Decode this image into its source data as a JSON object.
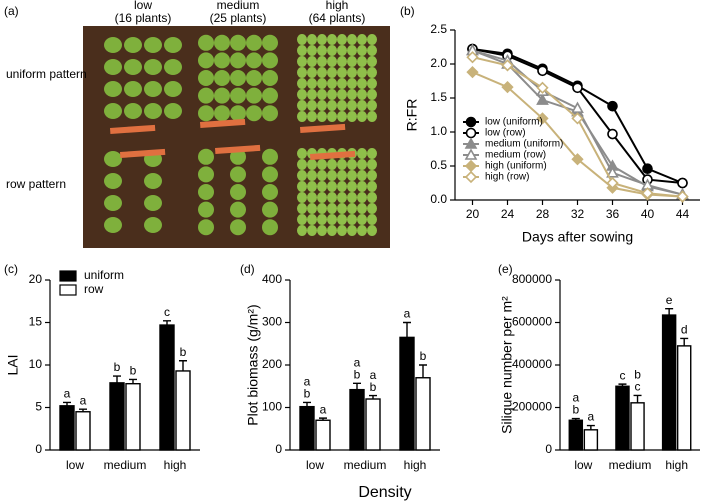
{
  "photo": {
    "panel_label": "(a)",
    "columns": [
      {
        "name": "low",
        "count": "(16 plants)"
      },
      {
        "name": "medium",
        "count": "(25 plants)"
      },
      {
        "name": "high",
        "count": "(64 plants)"
      }
    ],
    "rows": [
      "uniform  pattern",
      "row pattern"
    ]
  },
  "shared_xlabel": "Density",
  "chart_data": [
    {
      "type": "line",
      "panel_label": "(b)",
      "xlabel": "Days after sowing",
      "ylabel": "R:FR",
      "x": [
        20,
        24,
        28,
        32,
        36,
        40,
        44
      ],
      "xlim": [
        18,
        46
      ],
      "xticks": [
        20,
        24,
        28,
        32,
        36,
        40,
        44
      ],
      "ylim": [
        0,
        2.5
      ],
      "yticks": [
        {
          "value": 0,
          "label": "0.0"
        },
        0.5,
        {
          "value": 1,
          "label": "1.0"
        },
        1.5,
        {
          "value": 2,
          "label": "2.0"
        },
        2.5
      ],
      "legend": "lower-left",
      "series": [
        {
          "name": "low (uniform)",
          "color": "#000000",
          "marker": "circle",
          "filled": true,
          "values": [
            2.22,
            2.15,
            1.93,
            1.68,
            1.38,
            0.46,
            0.25
          ]
        },
        {
          "name": "low (row)",
          "color": "#000000",
          "marker": "circle",
          "filled": false,
          "values": [
            2.22,
            2.12,
            1.9,
            1.65,
            0.97,
            0.3,
            0.25
          ]
        },
        {
          "name": "medium (uniform)",
          "color": "#8c8c8c",
          "marker": "triangle",
          "filled": true,
          "values": [
            2.2,
            2.0,
            1.47,
            1.3,
            0.5,
            0.2,
            0.08
          ]
        },
        {
          "name": "medium (row)",
          "color": "#8c8c8c",
          "marker": "triangle",
          "filled": false,
          "values": [
            2.2,
            2.05,
            1.6,
            1.35,
            0.4,
            0.22,
            0.08
          ]
        },
        {
          "name": "high (uniform)",
          "color": "#c8b27a",
          "marker": "diamond",
          "filled": true,
          "values": [
            1.88,
            1.66,
            1.2,
            0.6,
            0.18,
            0.08,
            0.05
          ]
        },
        {
          "name": "high (row)",
          "color": "#c8b27a",
          "marker": "diamond",
          "filled": false,
          "values": [
            2.1,
            1.98,
            1.65,
            1.2,
            0.25,
            0.1,
            0.05
          ]
        }
      ]
    },
    {
      "type": "bar",
      "panel_label": "(c)",
      "ylabel": "LAI",
      "categories": [
        "low",
        "medium",
        "high"
      ],
      "ylim": [
        0,
        20
      ],
      "yticks": [
        0,
        5,
        10,
        15,
        20
      ],
      "legend": "upper-left",
      "series": [
        {
          "name": "uniform",
          "color": "#000000",
          "values": [
            5.2,
            7.9,
            14.7
          ],
          "errors": [
            0.4,
            0.8,
            0.5
          ],
          "letters": [
            [
              "a"
            ],
            [
              "b"
            ],
            [
              "c"
            ]
          ]
        },
        {
          "name": "row",
          "color": "#ffffff",
          "values": [
            4.5,
            7.8,
            9.3
          ],
          "errors": [
            0.3,
            0.5,
            1.2
          ],
          "letters": [
            [
              "a"
            ],
            [
              "b"
            ],
            [
              "b"
            ]
          ]
        }
      ]
    },
    {
      "type": "bar",
      "panel_label": "(d)",
      "ylabel": "Plot biomass (g/m²)",
      "categories": [
        "low",
        "medium",
        "high"
      ],
      "ylim": [
        0,
        400
      ],
      "yticks": [
        0,
        100,
        200,
        300,
        400
      ],
      "series": [
        {
          "name": "uniform",
          "color": "#000000",
          "values": [
            102,
            142,
            265
          ],
          "errors": [
            10,
            15,
            35
          ],
          "letters": [
            [
              "a",
              "b"
            ],
            [
              "a",
              "b"
            ],
            [
              "a"
            ]
          ]
        },
        {
          "name": "row",
          "color": "#ffffff",
          "values": [
            70,
            120,
            170
          ],
          "errors": [
            5,
            8,
            30
          ],
          "letters": [
            [
              "a"
            ],
            [
              "a",
              "b"
            ],
            [
              "b"
            ]
          ]
        }
      ]
    },
    {
      "type": "bar",
      "panel_label": "(e)",
      "ylabel": "Silique number per m²",
      "categories": [
        "low",
        "medium",
        "high"
      ],
      "ylim": [
        0,
        800000
      ],
      "yticks": [
        0,
        200000,
        400000,
        600000,
        800000
      ],
      "series": [
        {
          "name": "uniform",
          "color": "#000000",
          "values": [
            140000,
            300000,
            635000
          ],
          "errors": [
            8000,
            10000,
            30000
          ],
          "letters": [
            [
              "a",
              "b"
            ],
            [
              "c"
            ],
            [
              "e"
            ]
          ]
        },
        {
          "name": "row",
          "color": "#ffffff",
          "values": [
            95000,
            222000,
            490000
          ],
          "errors": [
            20000,
            35000,
            35000
          ],
          "letters": [
            [
              "a"
            ],
            [
              "b",
              "c"
            ],
            [
              "d"
            ]
          ]
        }
      ]
    }
  ]
}
